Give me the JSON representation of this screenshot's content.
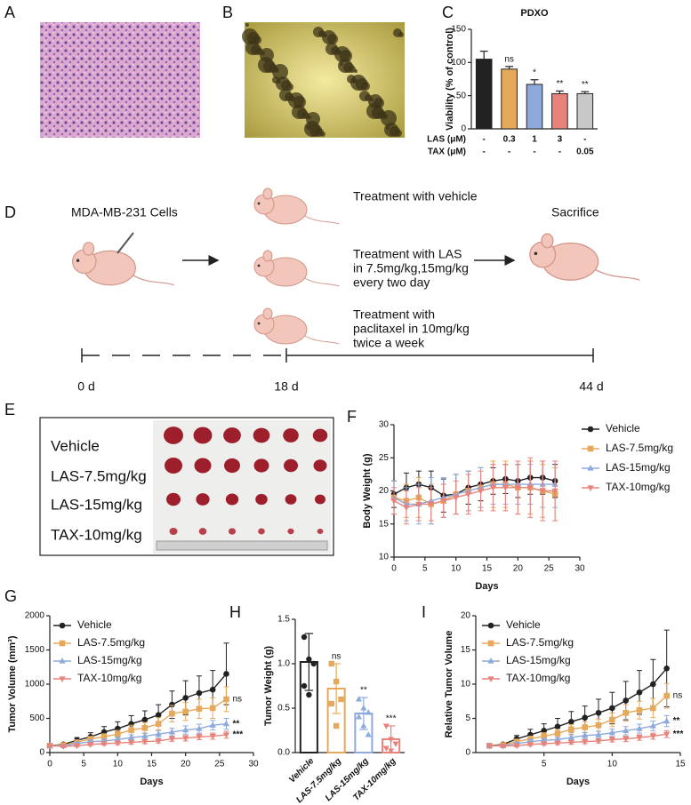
{
  "panel_labels": [
    "A",
    "B",
    "C",
    "D",
    "E",
    "F",
    "G",
    "H",
    "I"
  ],
  "diagram": {
    "start": "MDA-MB-231 Cells",
    "treatments": [
      [
        "Treatment with vehicle"
      ],
      [
        "Treatment with LAS",
        "in 7.5mg/kg,15mg/kg",
        "every two day"
      ],
      [
        "Treatment with",
        "paclitaxel in 10mg/kg",
        "twice a week"
      ]
    ],
    "end": "Sacrifice",
    "timeline": [
      "0 d",
      "18 d",
      "44 d"
    ]
  },
  "photo_labels": [
    "Vehicle",
    "LAS-7.5mg/kg",
    "LAS-15mg/kg",
    "TAX-10mg/kg"
  ],
  "chart_data": [
    {
      "type": "bar",
      "title": "PDXO",
      "ylabel": "Viability (% of control)",
      "filled": true,
      "values": [
        105,
        90,
        67,
        53,
        53
      ],
      "errors": [
        12,
        4,
        7,
        4,
        3
      ],
      "colors": [
        "#222222",
        "#e6a85a",
        "#8eaadc",
        "#e8837c",
        "#c8c8c8"
      ],
      "significance": [
        null,
        "ns",
        "*",
        "**",
        "**"
      ],
      "rows": [
        {
          "label": "LAS (μM)",
          "values": [
            "-",
            "0.3",
            "1",
            "3",
            "-"
          ]
        },
        {
          "label": "TAX (μM)",
          "values": [
            "-",
            "-",
            "-",
            "-",
            "0.05"
          ]
        }
      ],
      "ylim": [
        0,
        150
      ],
      "yticks": [
        0,
        50,
        100,
        150
      ]
    },
    {
      "type": "line",
      "xlabel": "Days",
      "ylabel": "Body Weight (g)",
      "x": [
        0,
        2,
        4,
        6,
        8,
        10,
        12,
        14,
        16,
        18,
        20,
        22,
        24,
        26
      ],
      "series": [
        {
          "name": "Vehicle",
          "color": "#222222",
          "marker": "circle",
          "values": [
            19.5,
            20.5,
            21,
            20.5,
            19.3,
            19.5,
            20.5,
            21,
            21.5,
            21.8,
            21.5,
            22,
            22,
            21.5
          ],
          "errors": [
            2,
            2.2,
            2,
            2.5,
            2.5,
            3,
            2.5,
            2.5,
            2,
            2.2,
            2.5,
            2.5,
            2.5,
            2.5
          ]
        },
        {
          "name": "LAS-7.5mg/kg",
          "color": "#e6a85a",
          "marker": "square",
          "values": [
            19,
            18.5,
            19,
            18,
            18.5,
            19.5,
            20,
            20.5,
            21,
            21,
            20.5,
            20.5,
            20,
            19.5
          ],
          "errors": [
            2.5,
            2.5,
            3,
            3,
            2.5,
            3,
            3,
            3,
            3.5,
            3.5,
            4,
            4,
            4,
            4
          ]
        },
        {
          "name": "LAS-15mg/kg",
          "color": "#8eaadc",
          "marker": "triangle-up",
          "values": [
            19,
            18,
            18,
            18.5,
            19,
            19.5,
            20,
            20.5,
            21,
            21,
            21,
            21,
            21,
            21
          ],
          "errors": [
            2.5,
            2.5,
            3,
            3.5,
            3,
            3,
            3,
            3,
            3,
            3,
            3,
            3,
            3.5,
            3.5
          ]
        },
        {
          "name": "TAX-10mg/kg",
          "color": "#e8837c",
          "marker": "triangle-down",
          "values": [
            18.5,
            17.5,
            18,
            18,
            18.5,
            19,
            19.5,
            20,
            20.5,
            20.5,
            20.5,
            20.5,
            20,
            20
          ],
          "errors": [
            2,
            2.5,
            2.5,
            2.5,
            2.5,
            2.5,
            3,
            3,
            3.5,
            3.5,
            4,
            4.5,
            4.5,
            4.5
          ]
        }
      ],
      "xlim": [
        0,
        30
      ],
      "xticks": [
        0,
        5,
        10,
        15,
        20,
        25,
        30
      ],
      "ylim": [
        10,
        30
      ],
      "yticks": [
        10,
        15,
        20,
        25,
        30
      ]
    },
    {
      "type": "line",
      "xlabel": "Days",
      "ylabel": "Tumor Volume (mm³)",
      "x": [
        0,
        2,
        4,
        6,
        8,
        10,
        12,
        14,
        16,
        18,
        20,
        22,
        24,
        26
      ],
      "series": [
        {
          "name": "Vehicle",
          "color": "#222222",
          "marker": "circle",
          "values": [
            100,
            120,
            180,
            230,
            300,
            350,
            420,
            480,
            550,
            700,
            800,
            870,
            920,
            1150
          ],
          "errors": [
            10,
            20,
            40,
            60,
            80,
            100,
            120,
            130,
            150,
            200,
            250,
            250,
            280,
            450
          ]
        },
        {
          "name": "LAS-7.5mg/kg",
          "color": "#e6a85a",
          "marker": "square",
          "values": [
            100,
            110,
            150,
            200,
            230,
            270,
            330,
            360,
            420,
            570,
            600,
            640,
            650,
            780
          ],
          "errors": [
            10,
            15,
            25,
            35,
            45,
            55,
            70,
            80,
            90,
            120,
            130,
            140,
            150,
            180
          ]
        },
        {
          "name": "LAS-15mg/kg",
          "color": "#8eaadc",
          "marker": "triangle-up",
          "values": [
            100,
            100,
            130,
            160,
            170,
            190,
            220,
            240,
            270,
            300,
            330,
            350,
            400,
            420
          ],
          "errors": [
            10,
            12,
            20,
            25,
            30,
            35,
            40,
            45,
            50,
            55,
            60,
            65,
            70,
            80
          ]
        },
        {
          "name": "TAX-10mg/kg",
          "color": "#e8837c",
          "marker": "triangle-down",
          "values": [
            100,
            90,
            100,
            120,
            130,
            140,
            150,
            160,
            170,
            200,
            210,
            230,
            240,
            260
          ],
          "errors": [
            10,
            10,
            15,
            20,
            20,
            25,
            25,
            30,
            30,
            35,
            40,
            40,
            45,
            50
          ]
        }
      ],
      "xlim": [
        0,
        30
      ],
      "xticks": [
        0,
        5,
        10,
        15,
        20,
        25,
        30
      ],
      "ylim": [
        0,
        2000
      ],
      "yticks": [
        0,
        500,
        1000,
        1500,
        2000
      ],
      "significance": [
        null,
        "ns",
        "**",
        "***"
      ]
    },
    {
      "type": "bar",
      "ylabel": "Tumor Weight (g)",
      "filled": false,
      "categories": [
        "Vehicle",
        "LAS-7.5mg/kg",
        "LAS-15mg/kg",
        "TAX-10mg/kg"
      ],
      "values": [
        1.02,
        0.72,
        0.44,
        0.15
      ],
      "errors": [
        0.32,
        0.28,
        0.18,
        0.15
      ],
      "points": [
        [
          1.3,
          1.05,
          1.0,
          0.75,
          0.65
        ],
        [
          1.0,
          0.8,
          0.6,
          0.55,
          0.3
        ],
        [
          0.6,
          0.5,
          0.45,
          0.4,
          0.3,
          0.2
        ],
        [
          0.3,
          0.15,
          0.1,
          0.05,
          0.02
        ]
      ],
      "markers": [
        "circle",
        "square",
        "triangle-up",
        "triangle-down"
      ],
      "colors": [
        "#222222",
        "#e6a85a",
        "#8eaadc",
        "#e8837c"
      ],
      "significance": [
        null,
        "ns",
        "**",
        "***"
      ],
      "ylim": [
        0,
        1.5
      ],
      "yticks": [
        {
          "value": 0,
          "label": "0.0"
        },
        {
          "value": 0.5,
          "label": "0.5"
        },
        {
          "value": 1,
          "label": "1.0"
        },
        {
          "value": 1.5,
          "label": "1.5"
        }
      ]
    },
    {
      "type": "line",
      "xlabel": "Days",
      "ylabel": "Relative Tumor Volume",
      "x": [
        1,
        2,
        3,
        4,
        5,
        6,
        7,
        8,
        9,
        10,
        11,
        12,
        13,
        14
      ],
      "series": [
        {
          "name": "Vehicle",
          "color": "#222222",
          "marker": "circle",
          "values": [
            1,
            1.2,
            2,
            2.6,
            3.2,
            3.8,
            4.5,
            5.1,
            5.8,
            6.5,
            7.6,
            8.8,
            10,
            12.3
          ],
          "errors": [
            0.1,
            0.2,
            0.5,
            0.8,
            1,
            1.2,
            1.5,
            1.7,
            2,
            2.3,
            2.8,
            3.2,
            3.6,
            5.6
          ]
        },
        {
          "name": "LAS-7.5mg/kg",
          "color": "#e6a85a",
          "marker": "square",
          "values": [
            1,
            1.1,
            1.6,
            2,
            2.4,
            2.8,
            3.4,
            3.7,
            4,
            4.8,
            5.8,
            6.2,
            6.5,
            8.3
          ],
          "errors": [
            0.1,
            0.15,
            0.3,
            0.4,
            0.5,
            0.6,
            0.7,
            0.8,
            0.9,
            1,
            1.2,
            1.3,
            1.4,
            1.8
          ]
        },
        {
          "name": "LAS-15mg/kg",
          "color": "#8eaadc",
          "marker": "triangle-up",
          "values": [
            1,
            1,
            1.3,
            1.6,
            1.8,
            1.9,
            2.2,
            2.5,
            2.6,
            2.9,
            3.2,
            3.5,
            3.9,
            4.6
          ],
          "errors": [
            0.1,
            0.1,
            0.2,
            0.3,
            0.3,
            0.35,
            0.4,
            0.45,
            0.5,
            0.55,
            0.6,
            0.65,
            0.7,
            0.8
          ]
        },
        {
          "name": "TAX-10mg/kg",
          "color": "#e8837c",
          "marker": "triangle-down",
          "values": [
            1,
            0.95,
            1.0,
            1.2,
            1.3,
            1.4,
            1.5,
            1.6,
            1.7,
            1.9,
            2.0,
            2.2,
            2.4,
            2.7
          ],
          "errors": [
            0.1,
            0.1,
            0.15,
            0.2,
            0.2,
            0.25,
            0.25,
            0.3,
            0.3,
            0.35,
            0.4,
            0.4,
            0.45,
            0.5
          ]
        }
      ],
      "xlim": [
        0,
        15
      ],
      "xticks": [
        5,
        10,
        15
      ],
      "ylim": [
        0,
        20
      ],
      "yticks": [
        0,
        5,
        10,
        15,
        20
      ],
      "significance": [
        null,
        "ns",
        "**",
        "***"
      ]
    }
  ]
}
